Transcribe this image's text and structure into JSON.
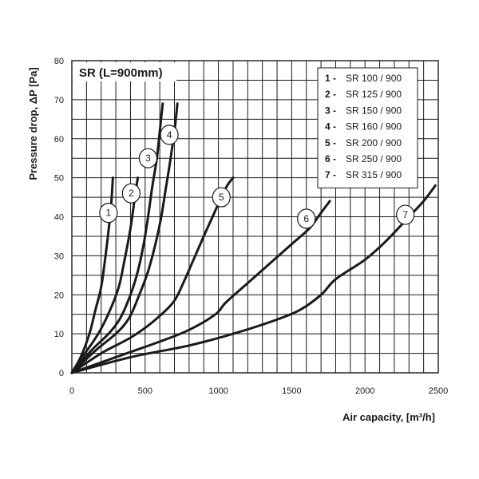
{
  "chart_data": {
    "type": "line",
    "title": "SR (L=900mm)",
    "xlabel": "Air capacity, [m³/h]",
    "ylabel": "Pressure drop, ΔP [Pa]",
    "xlim": [
      0,
      2500
    ],
    "ylim": [
      0,
      80
    ],
    "x_ticks": [
      "0",
      "500",
      "1000",
      "1500",
      "2000",
      "2500"
    ],
    "y_ticks": [
      "0",
      "10",
      "20",
      "30",
      "40",
      "50",
      "60",
      "70",
      "80"
    ],
    "grid": true,
    "legend_position": "top-right",
    "legend": [
      {
        "num": "1 -",
        "name": "SR 100 / 900"
      },
      {
        "num": "2 -",
        "name": "SR 125 / 900"
      },
      {
        "num": "3 -",
        "name": "SR 150 / 900"
      },
      {
        "num": "4 -",
        "name": "SR 160 / 900"
      },
      {
        "num": "5 -",
        "name": "SR 200 / 900"
      },
      {
        "num": "6 -",
        "name": "SR 250 / 900"
      },
      {
        "num": "7 -",
        "name": "SR 315 / 900"
      }
    ],
    "series": [
      {
        "label": "1",
        "label_at": [
          250,
          41
        ],
        "x": [
          0,
          60,
          120,
          160,
          200,
          230,
          255,
          270,
          280
        ],
        "y": [
          0,
          4,
          10,
          16,
          22,
          30,
          38,
          44,
          50
        ]
      },
      {
        "label": "2",
        "label_at": [
          405,
          46
        ],
        "x": [
          0,
          90,
          180,
          260,
          320,
          360,
          400,
          430,
          450
        ],
        "y": [
          0,
          5,
          10,
          16,
          22,
          29,
          37,
          45,
          50
        ]
      },
      {
        "label": "3",
        "label_at": [
          520,
          55
        ],
        "x": [
          0,
          140,
          250,
          330,
          400,
          450,
          490,
          520,
          550,
          580,
          600,
          620
        ],
        "y": [
          0,
          6,
          10,
          14,
          20,
          26,
          33,
          40,
          48,
          55,
          62,
          69
        ]
      },
      {
        "label": "4",
        "label_at": [
          665,
          61
        ],
        "x": [
          0,
          170,
          300,
          390,
          460,
          520,
          570,
          610,
          640,
          670,
          700,
          720
        ],
        "y": [
          0,
          6,
          10,
          14,
          20,
          26,
          33,
          40,
          47,
          54,
          62,
          69
        ]
      },
      {
        "label": "5",
        "label_at": [
          1020,
          45
        ],
        "x": [
          0,
          200,
          400,
          550,
          690,
          760,
          830,
          900,
          960,
          1020,
          1060,
          1100
        ],
        "y": [
          0,
          5,
          9,
          13,
          18,
          23,
          29,
          35,
          40,
          45,
          48,
          50
        ]
      },
      {
        "label": "6",
        "label_at": [
          1600,
          39.5
        ],
        "x": [
          0,
          300,
          600,
          800,
          980,
          1050,
          1200,
          1350,
          1500,
          1620,
          1700,
          1760
        ],
        "y": [
          0,
          4,
          8,
          11,
          15,
          18,
          23,
          28,
          33,
          37,
          41,
          44
        ]
      },
      {
        "label": "7",
        "label_at": [
          2275,
          40.5
        ],
        "x": [
          0,
          400,
          800,
          1100,
          1350,
          1550,
          1700,
          1800,
          2000,
          2150,
          2300,
          2400,
          2480
        ],
        "y": [
          0,
          4,
          7,
          10,
          13,
          16,
          20,
          24,
          29,
          34,
          40,
          44,
          48
        ]
      }
    ]
  }
}
